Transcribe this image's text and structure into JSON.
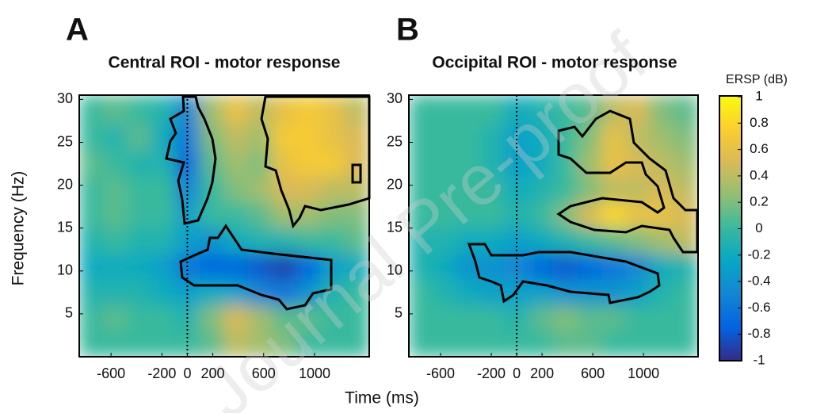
{
  "chart_data": [
    {
      "type": "heatmap",
      "panel": "A",
      "title": "Central ROI - motor response",
      "x": [
        -760,
        -570,
        -380,
        -190,
        0,
        190,
        380,
        570,
        760,
        950,
        1140,
        1330
      ],
      "y": [
        28.5,
        25.5,
        22.5,
        19.5,
        16.5,
        13.5,
        10.5,
        7.5,
        4.5,
        1.5
      ],
      "z": [
        [
          0,
          0.1,
          0,
          -0.1,
          -0.5,
          0.3,
          0.6,
          0.4,
          0.6,
          0.7,
          0.6,
          0.4
        ],
        [
          0,
          -0.1,
          0.1,
          -0.2,
          -0.6,
          0.2,
          0.4,
          0.3,
          0.7,
          0.7,
          0.6,
          0.5
        ],
        [
          0.1,
          0,
          -0.1,
          -0.1,
          -0.7,
          0.1,
          0.3,
          0.2,
          0.6,
          0.7,
          0.7,
          0.5
        ],
        [
          0,
          0.1,
          0,
          0,
          -0.5,
          0,
          0.2,
          0.3,
          0.5,
          0.5,
          0.4,
          0.4
        ],
        [
          0,
          0.1,
          0,
          0,
          -0.3,
          0,
          0,
          0.1,
          0.3,
          0.3,
          0.2,
          0.2
        ],
        [
          -0.1,
          0,
          -0.1,
          -0.1,
          -0.3,
          -0.4,
          -0.2,
          -0.1,
          -0.1,
          0,
          0,
          0.1
        ],
        [
          -0.2,
          -0.2,
          -0.2,
          -0.3,
          -0.6,
          -0.7,
          -0.7,
          -0.8,
          -0.9,
          -0.7,
          -0.3,
          -0.2
        ],
        [
          -0.1,
          -0.1,
          -0.1,
          -0.2,
          -0.3,
          -0.2,
          -0.3,
          -0.5,
          -0.6,
          -0.4,
          -0.1,
          0
        ],
        [
          0,
          0.1,
          0,
          0,
          -0.1,
          0.2,
          0.5,
          0.3,
          0.1,
          0.1,
          0,
          0
        ],
        [
          0,
          0,
          0,
          0,
          0,
          0.1,
          0.4,
          0.3,
          0.2,
          0,
          0,
          0
        ]
      ],
      "xlim": [
        -850,
        1430
      ],
      "ylim": [
        0,
        30.5
      ],
      "xticks": [
        -600,
        -200,
        0,
        200,
        600,
        1000
      ],
      "yticks": [
        5,
        10,
        15,
        20,
        25,
        30
      ]
    },
    {
      "type": "heatmap",
      "panel": "B",
      "title": "Occipital ROI - motor response",
      "x": [
        -760,
        -570,
        -380,
        -190,
        0,
        190,
        380,
        570,
        760,
        950,
        1140,
        1330
      ],
      "y": [
        28.5,
        25.5,
        22.5,
        19.5,
        16.5,
        13.5,
        10.5,
        7.5,
        4.5,
        1.5
      ],
      "z": [
        [
          0,
          0,
          0,
          0,
          -0.2,
          -0.1,
          0,
          0.1,
          0.4,
          0.5,
          0.2,
          0.1
        ],
        [
          0,
          0,
          0,
          -0.1,
          -0.3,
          -0.2,
          0,
          0.2,
          0.6,
          0.4,
          0.3,
          0.2
        ],
        [
          0,
          0,
          0,
          -0.1,
          -0.3,
          -0.2,
          0,
          0.3,
          0.6,
          0.5,
          0.4,
          0.3
        ],
        [
          0,
          0,
          0,
          0,
          -0.2,
          -0.1,
          0,
          0.2,
          0.4,
          0.4,
          0.5,
          0.4
        ],
        [
          0,
          0,
          0,
          0,
          -0.1,
          0,
          0.2,
          0.5,
          0.8,
          0.6,
          0.6,
          0.5
        ],
        [
          -0.1,
          -0.1,
          -0.2,
          -0.2,
          -0.3,
          -0.2,
          -0.1,
          0,
          0.1,
          0.2,
          0.3,
          0.4
        ],
        [
          -0.1,
          -0.2,
          -0.4,
          -0.4,
          -0.5,
          -0.7,
          -0.8,
          -0.7,
          -0.6,
          -0.5,
          -0.2,
          -0.1
        ],
        [
          0,
          -0.1,
          -0.2,
          -0.3,
          -0.3,
          -0.3,
          -0.4,
          -0.4,
          -0.4,
          -0.3,
          -0.1,
          0
        ],
        [
          0,
          0,
          0,
          0,
          -0.1,
          0.1,
          0.2,
          0.1,
          0.1,
          0,
          0,
          0
        ],
        [
          0,
          0,
          0,
          0,
          0,
          0,
          0.1,
          0.1,
          0,
          0,
          0,
          0
        ]
      ],
      "xlim": [
        -850,
        1430
      ],
      "ylim": [
        0,
        30.5
      ],
      "xticks": [
        -600,
        -200,
        0,
        200,
        600,
        1000
      ],
      "yticks": [
        5,
        10,
        15,
        20,
        25,
        30
      ]
    }
  ],
  "xlabel": "Time (ms)",
  "ylabel": "Frequency (Hz)",
  "colorbar": {
    "label": "ERSP (dB)",
    "colormap": "parula",
    "clim": [
      -1,
      1
    ],
    "ticks": [
      1,
      0.8,
      0.6,
      0.4,
      0.2,
      0,
      -0.2,
      -0.4,
      -0.6,
      -0.8,
      -1
    ]
  },
  "watermark": "Journal Pre-proof"
}
